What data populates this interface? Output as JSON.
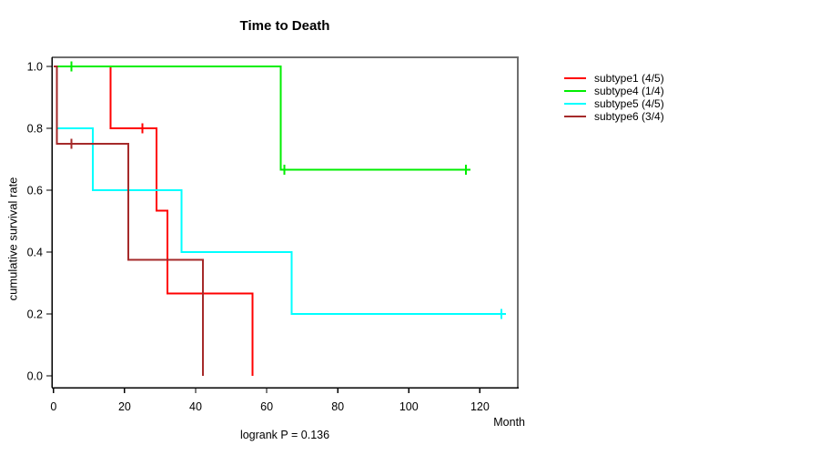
{
  "title": "Time to Death",
  "footer": "logrank P = 0.136",
  "colors": {
    "background": "#ffffff",
    "axis": "#000000",
    "frame_top_right": "#6e6e6e",
    "text": "#000000"
  },
  "chart_data": {
    "type": "line",
    "subtype": "kaplan-meier-step-survival",
    "title": "Time to Death",
    "xlabel": "Month",
    "ylabel": "cumulative survival rate",
    "annotation": "logrank P = 0.136",
    "xlim": [
      0,
      131
    ],
    "ylim": [
      0.0,
      1.0
    ],
    "grid": false,
    "legend_position": "right-outside",
    "x_ticks": [
      0,
      20,
      40,
      60,
      80,
      100,
      120
    ],
    "y_ticks": [
      "0.0",
      "0.2",
      "0.4",
      "0.6",
      "0.8",
      "1.0"
    ],
    "y_tick_values": [
      0.0,
      0.2,
      0.4,
      0.6,
      0.8,
      1.0
    ],
    "series": [
      {
        "name": "subtype1 (4/5)",
        "color": "#ff0000",
        "points": [
          [
            0,
            1.0
          ],
          [
            16,
            1.0
          ],
          [
            16,
            0.8
          ],
          [
            29,
            0.8
          ],
          [
            29,
            0.5333
          ],
          [
            32,
            0.5333
          ],
          [
            32,
            0.2667
          ],
          [
            56,
            0.2667
          ],
          [
            56,
            0.0
          ]
        ],
        "censors": [
          [
            25,
            0.8
          ]
        ]
      },
      {
        "name": "subtype4 (1/4)",
        "color": "#00ee00",
        "points": [
          [
            0,
            1.0
          ],
          [
            64,
            1.0
          ],
          [
            64,
            0.6667
          ],
          [
            116,
            0.6667
          ]
        ],
        "censors": [
          [
            5,
            1.0
          ],
          [
            65,
            0.6667
          ],
          [
            116,
            0.6667
          ]
        ]
      },
      {
        "name": "subtype5 (4/5)",
        "color": "#00ffff",
        "points": [
          [
            0,
            1.0
          ],
          [
            1,
            1.0
          ],
          [
            1,
            0.8
          ],
          [
            11,
            0.8
          ],
          [
            11,
            0.6
          ],
          [
            36,
            0.6
          ],
          [
            36,
            0.4
          ],
          [
            67,
            0.4
          ],
          [
            67,
            0.2
          ],
          [
            126,
            0.2
          ]
        ],
        "censors": [
          [
            126,
            0.2
          ]
        ]
      },
      {
        "name": "subtype6 (3/4)",
        "color": "#a52a2a",
        "points": [
          [
            0,
            1.0
          ],
          [
            1,
            1.0
          ],
          [
            1,
            0.75
          ],
          [
            21,
            0.75
          ],
          [
            21,
            0.375
          ],
          [
            42,
            0.375
          ],
          [
            42,
            0.0
          ]
        ],
        "censors": [
          [
            5,
            0.75
          ]
        ]
      }
    ]
  }
}
